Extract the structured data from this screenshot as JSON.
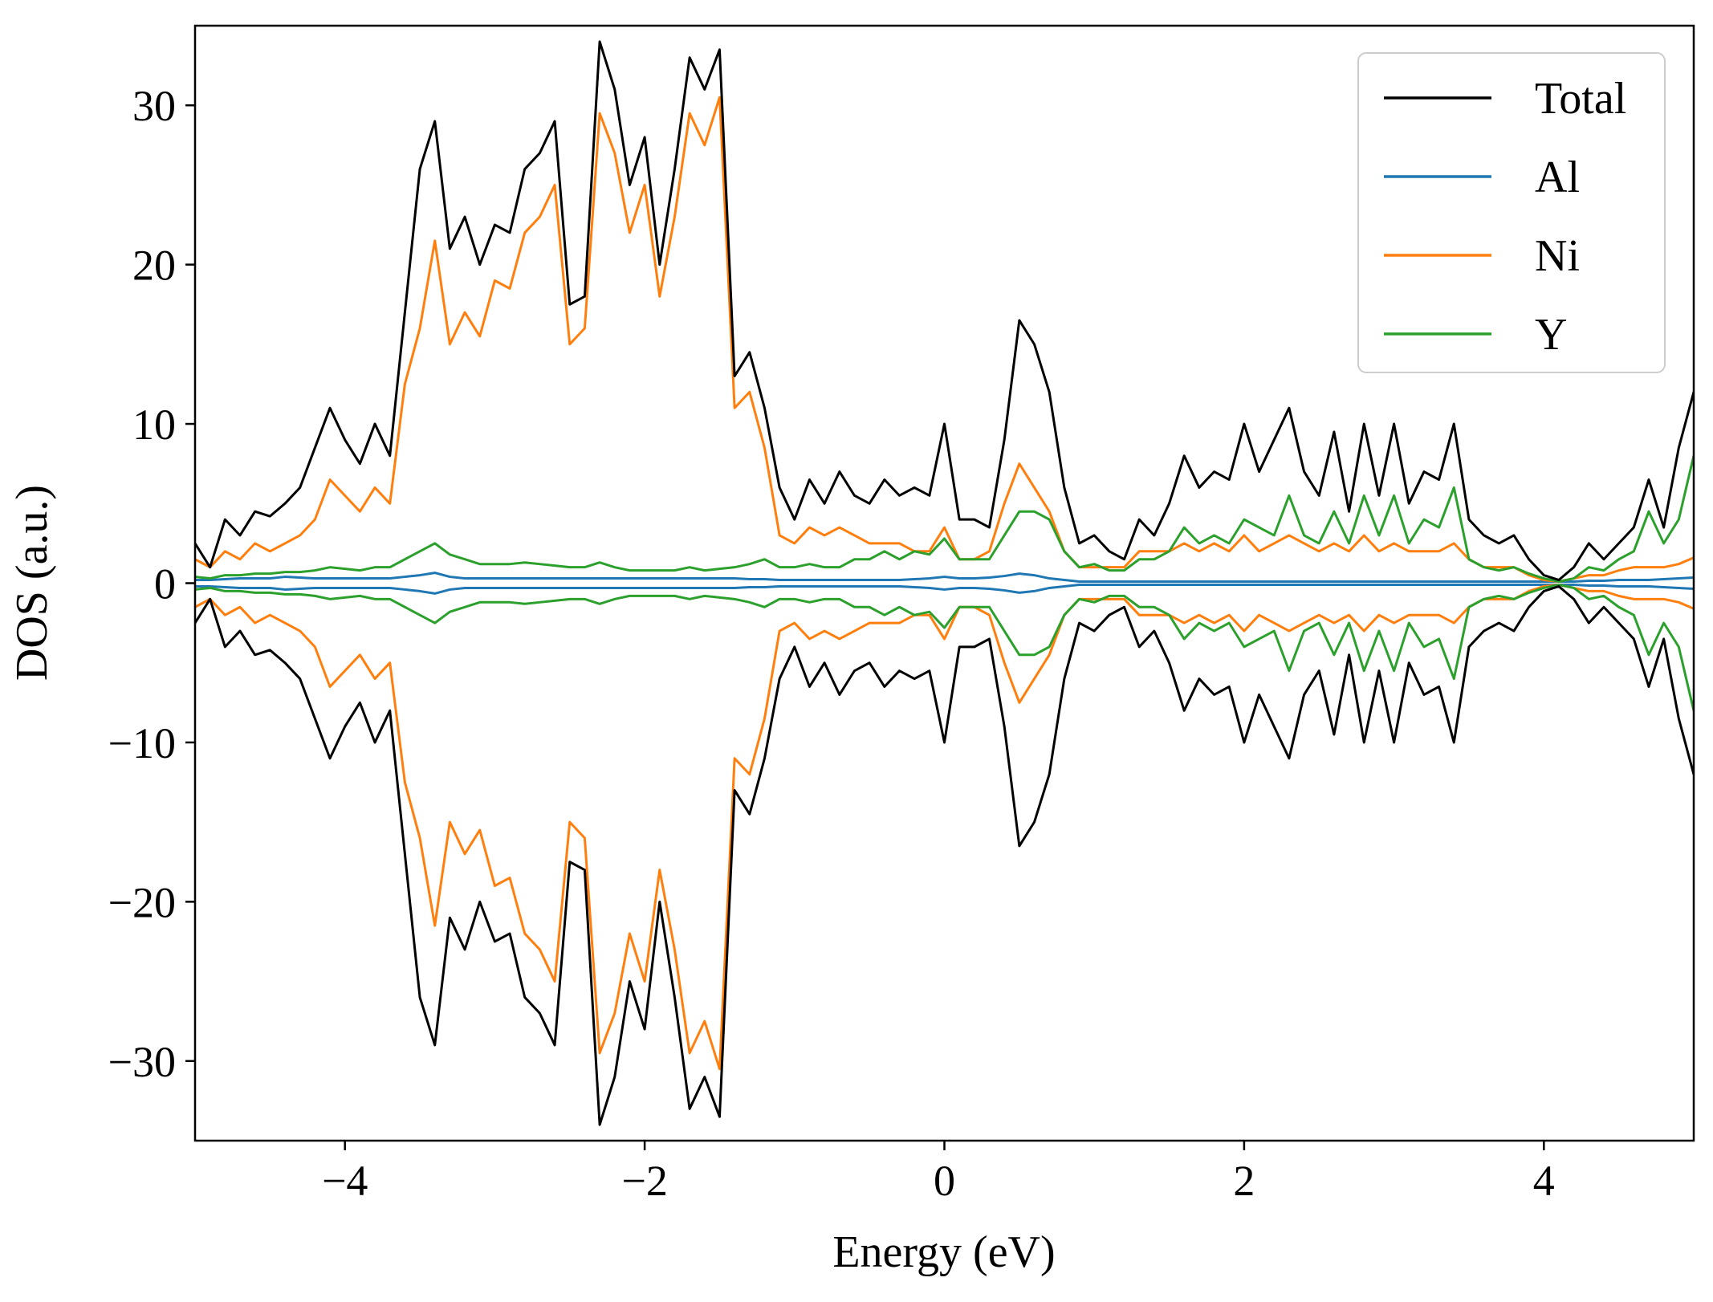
{
  "chart_data": {
    "type": "line",
    "title": "",
    "xlabel": "Energy (eV)",
    "ylabel": "DOS (a.u.)",
    "xlim": [
      -5,
      5
    ],
    "ylim": [
      -35,
      35
    ],
    "xticks": [
      -4,
      -2,
      0,
      2,
      4
    ],
    "xtick_labels": [
      "−4",
      "−2",
      "0",
      "2",
      "4"
    ],
    "yticks": [
      30,
      20,
      10,
      0,
      -10,
      -20,
      -30
    ],
    "ytick_labels": [
      "30",
      "20",
      "10",
      "0",
      "−10",
      "−20",
      "−30"
    ],
    "grid": false,
    "legend_position": "top-right",
    "spin_symmetric": true,
    "x": [
      -5.0,
      -4.9,
      -4.8,
      -4.7,
      -4.6,
      -4.5,
      -4.4,
      -4.3,
      -4.2,
      -4.1,
      -4.0,
      -3.9,
      -3.8,
      -3.7,
      -3.6,
      -3.5,
      -3.4,
      -3.3,
      -3.2,
      -3.1,
      -3.0,
      -2.9,
      -2.8,
      -2.7,
      -2.6,
      -2.5,
      -2.4,
      -2.3,
      -2.2,
      -2.1,
      -2.0,
      -1.9,
      -1.8,
      -1.7,
      -1.6,
      -1.5,
      -1.4,
      -1.3,
      -1.2,
      -1.1,
      -1.0,
      -0.9,
      -0.8,
      -0.7,
      -0.6,
      -0.5,
      -0.4,
      -0.3,
      -0.2,
      -0.1,
      0.0,
      0.1,
      0.2,
      0.3,
      0.4,
      0.5,
      0.6,
      0.7,
      0.8,
      0.9,
      1.0,
      1.1,
      1.2,
      1.3,
      1.4,
      1.5,
      1.6,
      1.7,
      1.8,
      1.9,
      2.0,
      2.1,
      2.2,
      2.3,
      2.4,
      2.5,
      2.6,
      2.7,
      2.8,
      2.9,
      3.0,
      3.1,
      3.2,
      3.3,
      3.4,
      3.5,
      3.6,
      3.7,
      3.8,
      3.9,
      4.0,
      4.1,
      4.2,
      4.3,
      4.4,
      4.5,
      4.6,
      4.7,
      4.8,
      4.9,
      5.0
    ],
    "series": [
      {
        "name": "Total",
        "color": "#000000",
        "values": [
          2.5,
          1.0,
          4.0,
          3.0,
          4.5,
          4.2,
          5.0,
          6.0,
          8.5,
          11.0,
          9.0,
          7.5,
          10.0,
          8.0,
          17.0,
          26.0,
          29.0,
          21.0,
          23.0,
          20.0,
          22.5,
          22.0,
          26.0,
          27.0,
          29.0,
          17.5,
          18.0,
          34.0,
          31.0,
          25.0,
          28.0,
          20.0,
          26.0,
          33.0,
          31.0,
          33.5,
          13.0,
          14.5,
          11.0,
          6.0,
          4.0,
          6.5,
          5.0,
          7.0,
          5.5,
          5.0,
          6.5,
          5.5,
          6.0,
          5.5,
          10.0,
          4.0,
          4.0,
          3.5,
          9.0,
          16.5,
          15.0,
          12.0,
          6.0,
          2.5,
          3.0,
          2.0,
          1.5,
          4.0,
          3.0,
          5.0,
          8.0,
          6.0,
          7.0,
          6.5,
          10.0,
          7.0,
          9.0,
          11.0,
          7.0,
          5.5,
          9.5,
          4.5,
          10.0,
          5.5,
          10.0,
          5.0,
          7.0,
          6.5,
          10.0,
          4.0,
          3.0,
          2.5,
          3.0,
          1.5,
          0.5,
          0.2,
          1.0,
          2.5,
          1.5,
          2.5,
          3.5,
          6.5,
          3.5,
          8.5,
          12.0
        ]
      },
      {
        "name": "Al",
        "color": "#1f77b4",
        "values": [
          0.2,
          0.2,
          0.25,
          0.3,
          0.3,
          0.3,
          0.4,
          0.35,
          0.3,
          0.3,
          0.3,
          0.3,
          0.3,
          0.3,
          0.4,
          0.5,
          0.65,
          0.4,
          0.3,
          0.3,
          0.3,
          0.3,
          0.3,
          0.3,
          0.3,
          0.3,
          0.3,
          0.3,
          0.3,
          0.3,
          0.3,
          0.3,
          0.3,
          0.3,
          0.3,
          0.3,
          0.3,
          0.25,
          0.25,
          0.2,
          0.2,
          0.2,
          0.2,
          0.2,
          0.2,
          0.2,
          0.2,
          0.2,
          0.25,
          0.3,
          0.4,
          0.3,
          0.3,
          0.35,
          0.45,
          0.6,
          0.5,
          0.3,
          0.2,
          0.1,
          0.1,
          0.1,
          0.1,
          0.1,
          0.1,
          0.1,
          0.1,
          0.1,
          0.1,
          0.1,
          0.1,
          0.1,
          0.1,
          0.1,
          0.1,
          0.1,
          0.1,
          0.1,
          0.1,
          0.1,
          0.1,
          0.1,
          0.1,
          0.1,
          0.1,
          0.1,
          0.1,
          0.1,
          0.1,
          0.1,
          0.1,
          0.1,
          0.1,
          0.15,
          0.15,
          0.2,
          0.2,
          0.2,
          0.25,
          0.3,
          0.35
        ]
      },
      {
        "name": "Ni",
        "color": "#ff7f0e",
        "values": [
          1.5,
          1.0,
          2.0,
          1.5,
          2.5,
          2.0,
          2.5,
          3.0,
          4.0,
          6.5,
          5.5,
          4.5,
          6.0,
          5.0,
          12.5,
          16.0,
          21.5,
          15.0,
          17.0,
          15.5,
          19.0,
          18.5,
          22.0,
          23.0,
          25.0,
          15.0,
          16.0,
          29.5,
          27.0,
          22.0,
          25.0,
          18.0,
          23.0,
          29.5,
          27.5,
          30.5,
          11.0,
          12.0,
          8.5,
          3.0,
          2.5,
          3.5,
          3.0,
          3.5,
          3.0,
          2.5,
          2.5,
          2.5,
          2.0,
          2.0,
          3.5,
          1.5,
          1.5,
          2.0,
          5.0,
          7.5,
          6.0,
          4.5,
          2.0,
          1.0,
          1.0,
          1.0,
          1.0,
          2.0,
          2.0,
          2.0,
          2.5,
          2.0,
          2.5,
          2.0,
          3.0,
          2.0,
          2.5,
          3.0,
          2.5,
          2.0,
          2.5,
          2.0,
          3.0,
          2.0,
          2.5,
          2.0,
          2.0,
          2.0,
          2.5,
          1.5,
          1.0,
          1.0,
          1.0,
          0.5,
          0.2,
          0.1,
          0.3,
          0.5,
          0.5,
          0.8,
          1.0,
          1.0,
          1.0,
          1.2,
          1.6
        ]
      },
      {
        "name": "Y",
        "color": "#2ca02c",
        "values": [
          0.4,
          0.3,
          0.5,
          0.5,
          0.6,
          0.6,
          0.7,
          0.7,
          0.8,
          1.0,
          0.9,
          0.8,
          1.0,
          1.0,
          1.5,
          2.0,
          2.5,
          1.8,
          1.5,
          1.2,
          1.2,
          1.2,
          1.3,
          1.2,
          1.1,
          1.0,
          1.0,
          1.3,
          1.0,
          0.8,
          0.8,
          0.8,
          0.8,
          1.0,
          0.8,
          0.9,
          1.0,
          1.2,
          1.5,
          1.0,
          1.0,
          1.2,
          1.0,
          1.0,
          1.5,
          1.5,
          2.0,
          1.5,
          2.0,
          1.8,
          2.8,
          1.5,
          1.5,
          1.5,
          3.0,
          4.5,
          4.5,
          4.0,
          2.0,
          1.0,
          1.2,
          0.8,
          0.8,
          1.5,
          1.5,
          2.0,
          3.5,
          2.5,
          3.0,
          2.5,
          4.0,
          3.5,
          3.0,
          5.5,
          3.0,
          2.5,
          4.5,
          2.5,
          5.5,
          3.0,
          5.5,
          2.5,
          4.0,
          3.5,
          6.0,
          1.5,
          1.0,
          0.8,
          1.0,
          0.6,
          0.3,
          0.1,
          0.3,
          1.0,
          0.8,
          1.5,
          2.0,
          4.5,
          2.5,
          4.0,
          8.0
        ]
      }
    ]
  }
}
